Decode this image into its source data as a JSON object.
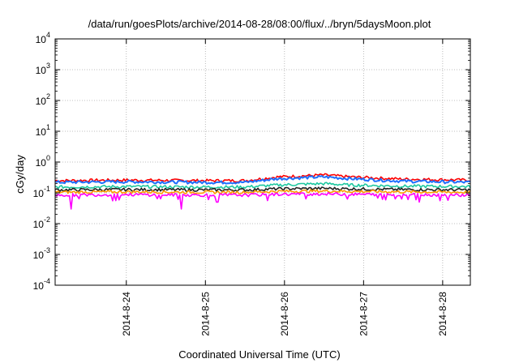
{
  "chart_data": {
    "type": "line",
    "title": "/data/run/goesPlots/archive/2014-08-28/08:00/flux/../bryn/5daysMoon.plot",
    "xlabel": "Coordinated Universal Time (UTC)",
    "ylabel": "cGy/day",
    "yscale": "log",
    "ylim": [
      0.0001,
      10000
    ],
    "xlim_days_from_2014_08_23": [
      0.1,
      5.35
    ],
    "x_ticks": [
      "2014-8-24",
      "2014-8-25",
      "2014-8-26",
      "2014-8-27",
      "2014-8-28"
    ],
    "y_ticks": [
      {
        "base": "10",
        "exp": "-4"
      },
      {
        "base": "10",
        "exp": "-3"
      },
      {
        "base": "10",
        "exp": "-2"
      },
      {
        "base": "10",
        "exp": "-1"
      },
      {
        "base": "10",
        "exp": "0"
      },
      {
        "base": "10",
        "exp": "1"
      },
      {
        "base": "10",
        "exp": "2"
      },
      {
        "base": "10",
        "exp": "3"
      },
      {
        "base": "10",
        "exp": "4"
      }
    ],
    "grid": true,
    "series": [
      {
        "color": "#ff0000",
        "x": [
          "2014-08-23 02:24",
          "2014-08-24 00:00",
          "2014-08-25 00:00",
          "2014-08-25 12:00",
          "2014-08-25 22:00",
          "2014-08-26 12:00",
          "2014-08-26 20:00",
          "2014-08-27 12:00",
          "2014-08-28 08:24"
        ],
        "values": [
          0.25,
          0.26,
          0.25,
          0.25,
          0.33,
          0.38,
          0.33,
          0.28,
          0.26
        ]
      },
      {
        "color": "#1e6fff",
        "x": [
          "2014-08-23 02:24",
          "2014-08-24 00:00",
          "2014-08-25 00:00",
          "2014-08-25 12:00",
          "2014-08-25 22:00",
          "2014-08-26 12:00",
          "2014-08-26 20:00",
          "2014-08-27 12:00",
          "2014-08-28 08:24"
        ],
        "values": [
          0.22,
          0.23,
          0.22,
          0.22,
          0.29,
          0.33,
          0.29,
          0.24,
          0.22
        ]
      },
      {
        "color": "#1ec8a0",
        "x": [
          "2014-08-23 02:24",
          "2014-08-24 00:00",
          "2014-08-25 00:00",
          "2014-08-25 12:00",
          "2014-08-25 22:00",
          "2014-08-26 12:00",
          "2014-08-26 20:00",
          "2014-08-27 12:00",
          "2014-08-28 08:24"
        ],
        "values": [
          0.155,
          0.16,
          0.155,
          0.155,
          0.18,
          0.2,
          0.18,
          0.165,
          0.16
        ]
      },
      {
        "color": "#222222",
        "x": [
          "2014-08-23 02:24",
          "2014-08-24 00:00",
          "2014-08-25 00:00",
          "2014-08-25 12:00",
          "2014-08-25 22:00",
          "2014-08-26 12:00",
          "2014-08-26 20:00",
          "2014-08-27 12:00",
          "2014-08-28 08:24"
        ],
        "values": [
          0.125,
          0.128,
          0.125,
          0.125,
          0.135,
          0.14,
          0.135,
          0.128,
          0.125
        ]
      },
      {
        "color": "#ff9900",
        "x": [
          "2014-08-23 02:24",
          "2014-08-24 00:00",
          "2014-08-25 00:00",
          "2014-08-25 12:00",
          "2014-08-25 22:00",
          "2014-08-26 12:00",
          "2014-08-26 20:00",
          "2014-08-27 12:00",
          "2014-08-28 08:24"
        ],
        "values": [
          0.105,
          0.108,
          0.105,
          0.105,
          0.112,
          0.115,
          0.112,
          0.108,
          0.105
        ]
      },
      {
        "color": "#ff00ff",
        "x": [
          "2014-08-23 02:24",
          "2014-08-24 00:00",
          "2014-08-25 00:00",
          "2014-08-25 12:00",
          "2014-08-25 22:00",
          "2014-08-26 12:00",
          "2014-08-26 20:00",
          "2014-08-27 12:00",
          "2014-08-28 08:24"
        ],
        "values": [
          0.085,
          0.088,
          0.085,
          0.085,
          0.09,
          0.093,
          0.09,
          0.088,
          0.085
        ],
        "dips": [
          {
            "x": "2014-08-23 07:12",
            "value": 0.03
          },
          {
            "x": "2014-08-24 16:48",
            "value": 0.03
          },
          {
            "x": "2014-08-27 16:48",
            "value": 0.05
          },
          {
            "x": "2014-08-25 03:36",
            "value": 0.05
          }
        ]
      }
    ]
  }
}
